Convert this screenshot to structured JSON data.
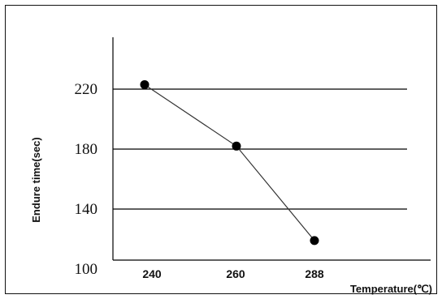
{
  "chart_data": {
    "type": "line",
    "title": "",
    "xlabel": "Temperature(℃)",
    "ylabel": "Endure time(sec)",
    "x_categories": [
      "240",
      "260",
      "288"
    ],
    "y_ticks": [
      "220",
      "180",
      "140",
      "100"
    ],
    "ylim": [
      100,
      220
    ],
    "grid": "horizontal",
    "series": [
      {
        "x": [
          "240",
          "260",
          "288"
        ],
        "values": [
          223,
          182,
          119
        ]
      }
    ],
    "colors": {
      "line": "#333333",
      "marker": "#000000",
      "grid": "#000000"
    }
  }
}
